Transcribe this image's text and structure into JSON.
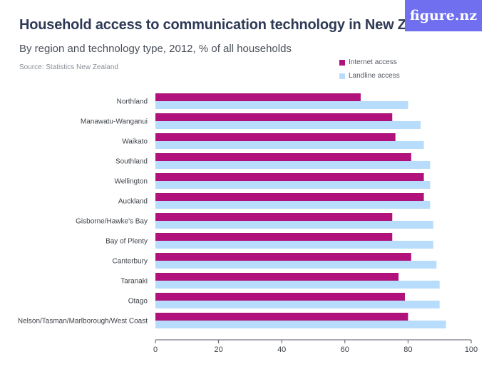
{
  "header": {
    "title": "Household access to communication technology in New Zealand",
    "subtitle": "By region and technology type, 2012, % of all households",
    "source": "Source: Statistics New Zealand",
    "logo_text": "figure.nz"
  },
  "colors": {
    "internet": "#b0117a",
    "landline": "#b8dcfb",
    "logo_bg": "#6f6ff0"
  },
  "chart_data": {
    "type": "bar",
    "orientation": "horizontal",
    "title": "Household access to communication technology in New Zealand",
    "subtitle": "By region and technology type, 2012, % of all households",
    "xlim": [
      0,
      100
    ],
    "xticks": [
      0,
      20,
      40,
      60,
      80,
      100
    ],
    "grid": false,
    "legend": "top-right",
    "categories": [
      "Northland",
      "Manawatu-Wanganui",
      "Waikato",
      "Southland",
      "Wellington",
      "Auckland",
      "Gisborne/Hawke's Bay",
      "Bay of Plenty",
      "Canterbury",
      "Taranaki",
      "Otago",
      "Nelson/Tasman/Marlborough/West Coast"
    ],
    "series": [
      {
        "name": "Internet access",
        "color": "#b0117a",
        "values": [
          65,
          75,
          76,
          81,
          85,
          85,
          75,
          75,
          81,
          77,
          79,
          80
        ]
      },
      {
        "name": "Landline access",
        "color": "#b8dcfb",
        "values": [
          80,
          84,
          85,
          87,
          87,
          87,
          88,
          88,
          89,
          90,
          90,
          92
        ]
      }
    ]
  }
}
